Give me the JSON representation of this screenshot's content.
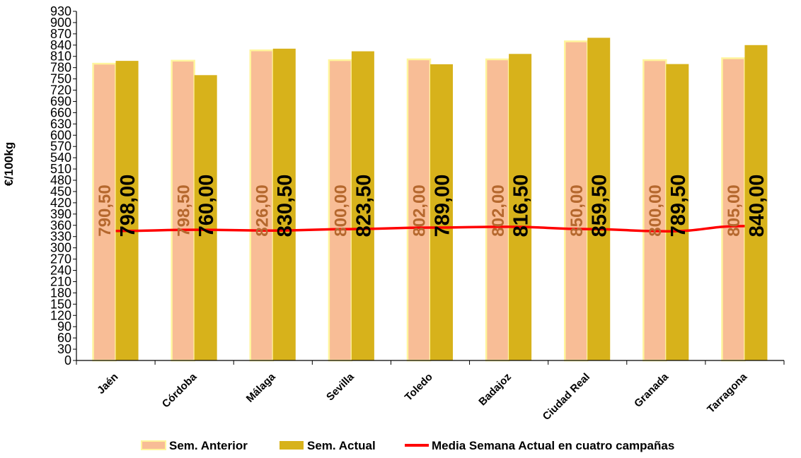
{
  "chart_data": {
    "type": "bar",
    "ylabel": "€/100kg",
    "ylim": [
      0,
      930
    ],
    "y_tick_step": 30,
    "categories": [
      "Jaén",
      "Córdoba",
      "Málaga",
      "Sevilla",
      "Toledo",
      "Badajoz",
      "Ciudad Real",
      "Granada",
      "Tarragona"
    ],
    "series": [
      {
        "name": "Sem. Anterior",
        "type": "bar",
        "color": "#f8bd96",
        "edge_color": "#fff59d",
        "label_color": "#b5682e",
        "values": [
          790.5,
          798.5,
          826.0,
          800.0,
          802.0,
          802.0,
          850.0,
          800.0,
          805.0
        ],
        "labels": [
          "790,50",
          "798,50",
          "826,00",
          "800,00",
          "802,00",
          "802,00",
          "850,00",
          "800,00",
          "805,00"
        ]
      },
      {
        "name": "Sem. Actual",
        "type": "bar",
        "color": "#d7b21b",
        "label_color": "#000000",
        "values": [
          798.0,
          760.0,
          830.5,
          823.5,
          789.0,
          816.5,
          859.5,
          789.5,
          840.0
        ],
        "labels": [
          "798,00",
          "760,00",
          "830,50",
          "823,50",
          "789,00",
          "816,50",
          "859,50",
          "789,50",
          "840,00"
        ]
      },
      {
        "name": "Media Semana Actual en cuatro campañas",
        "type": "line",
        "color": "#ff0000",
        "values": [
          345,
          348,
          346,
          350,
          354,
          356,
          350,
          344,
          358
        ]
      }
    ],
    "grid": false,
    "legend_position": "bottom"
  }
}
